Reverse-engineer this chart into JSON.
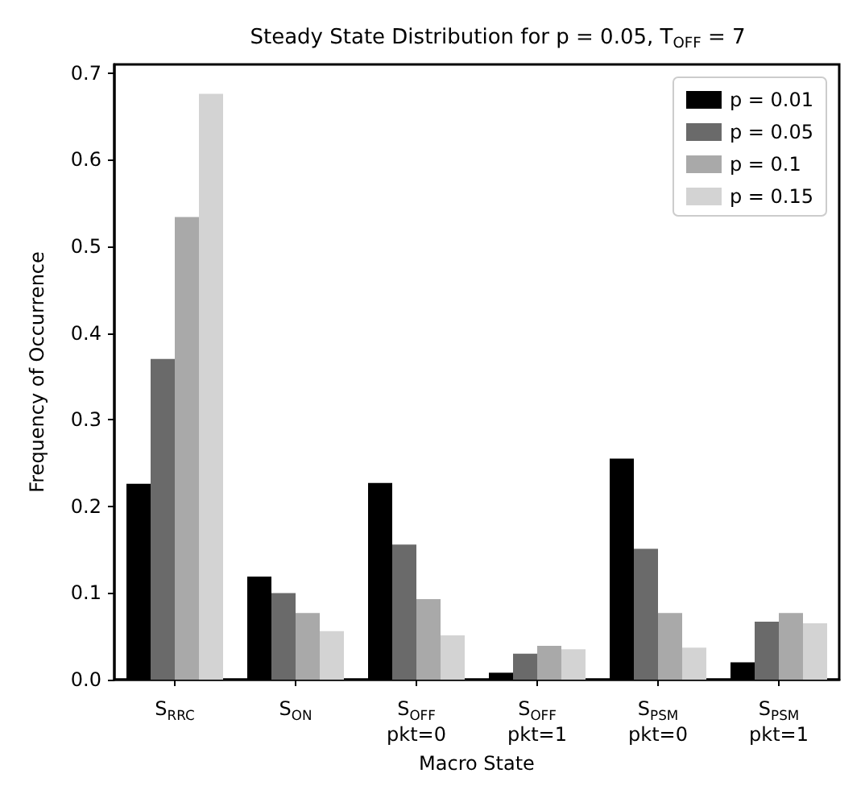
{
  "chart_data": {
    "type": "bar",
    "title": "Steady State Distribution for p = 0.05, T$_{OFF}$ = 7",
    "xlabel": "Macro State",
    "ylabel": "Frequency of Occurrence",
    "categories": [
      "S$_{RRC}$",
      "S$_{ON}$",
      "S$_{OFF}$\npkt=0",
      "S$_{OFF}$\npkt=1",
      "S$_{PSM}$\npkt=0",
      "S$_{PSM}$\npkt=1"
    ],
    "series": [
      {
        "name": "p = 0.01",
        "color": "#000000",
        "values": [
          0.226,
          0.119,
          0.227,
          0.008,
          0.255,
          0.02
        ]
      },
      {
        "name": "p = 0.05",
        "color": "#6a6a6a",
        "values": [
          0.37,
          0.1,
          0.156,
          0.03,
          0.151,
          0.067
        ]
      },
      {
        "name": "p = 0.1",
        "color": "#a9a9a9",
        "values": [
          0.534,
          0.077,
          0.093,
          0.039,
          0.077,
          0.077
        ]
      },
      {
        "name": "p = 0.15",
        "color": "#d3d3d3",
        "values": [
          0.676,
          0.056,
          0.051,
          0.035,
          0.037,
          0.065
        ]
      }
    ],
    "ylim": [
      0,
      0.71
    ],
    "yticks": [
      {
        "value": 0,
        "label": "0.0"
      },
      {
        "value": 0.1,
        "label": "0.1"
      },
      {
        "value": 0.2,
        "label": "0.2"
      },
      {
        "value": 0.3,
        "label": "0.3"
      },
      {
        "value": 0.4,
        "label": "0.4"
      },
      {
        "value": 0.5,
        "label": "0.5"
      },
      {
        "value": 0.6,
        "label": "0.6"
      },
      {
        "value": 0.7,
        "label": "0.7"
      }
    ],
    "grid": false,
    "legend": "top right"
  }
}
